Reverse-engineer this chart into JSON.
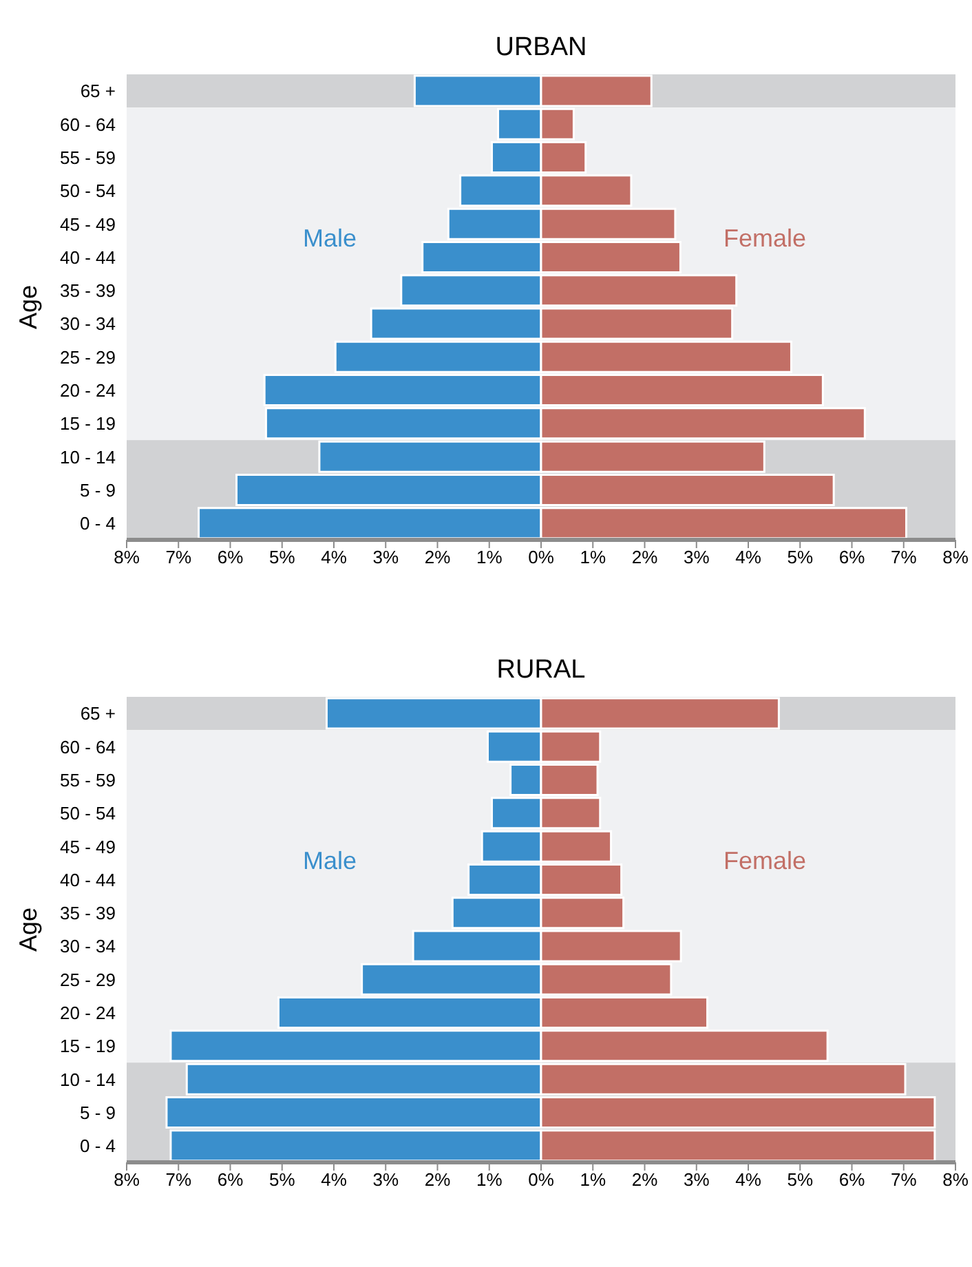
{
  "chart_data": [
    {
      "type": "bar",
      "title": "URBAN",
      "ylabel": "Age",
      "orientation": "horizontal",
      "stacked": true,
      "categories": [
        "65 +",
        "60 - 64",
        "55 - 59",
        "50 - 54",
        "45 - 49",
        "40 - 44",
        "35 - 39",
        "30 - 34",
        "25 - 29",
        "20 - 24",
        "15 - 19",
        "10 - 14",
        "5 - 9",
        "0 - 4"
      ],
      "series": [
        {
          "name": "Male",
          "color": "#3a8fcc",
          "values": [
            -2.44,
            -0.83,
            -0.95,
            -1.56,
            -1.79,
            -2.29,
            -2.7,
            -3.28,
            -3.97,
            -5.34,
            -5.31,
            -4.28,
            -5.88,
            -6.61
          ]
        },
        {
          "name": "Female",
          "color": "#c26f66",
          "values": [
            2.13,
            0.63,
            0.86,
            1.74,
            2.59,
            2.69,
            3.77,
            3.69,
            4.83,
            5.44,
            6.25,
            4.31,
            5.65,
            7.05
          ]
        }
      ],
      "xlim": [
        -8,
        8
      ],
      "xticks": [
        {
          "value": -8,
          "label": "8%"
        },
        {
          "value": -7,
          "label": "7%"
        },
        {
          "value": -6,
          "label": "6%"
        },
        {
          "value": -5,
          "label": "5%"
        },
        {
          "value": -4,
          "label": "4%"
        },
        {
          "value": -3,
          "label": "3%"
        },
        {
          "value": -2,
          "label": "2%"
        },
        {
          "value": -1,
          "label": "1%"
        },
        {
          "value": 0,
          "label": "0%"
        },
        {
          "value": 1,
          "label": "1%"
        },
        {
          "value": 2,
          "label": "2%"
        },
        {
          "value": 3,
          "label": "3%"
        },
        {
          "value": 4,
          "label": "4%"
        },
        {
          "value": 5,
          "label": "5%"
        },
        {
          "value": 6,
          "label": "6%"
        },
        {
          "value": 7,
          "label": "7%"
        },
        {
          "value": 8,
          "label": "8%"
        }
      ],
      "bands": [
        {
          "axis": "y",
          "from": "65 +",
          "to": "65 +",
          "color": "#d1d2d4"
        },
        {
          "axis": "y",
          "from": "60 - 64",
          "to": "15 - 19",
          "color": "#f0f1f3"
        },
        {
          "axis": "y",
          "from": "10 - 14",
          "to": "0 - 4",
          "color": "#d1d2d4"
        }
      ]
    },
    {
      "type": "bar",
      "title": "RURAL",
      "ylabel": "Age",
      "orientation": "horizontal",
      "stacked": true,
      "categories": [
        "65 +",
        "60 - 64",
        "55 - 59",
        "50 - 54",
        "45 - 49",
        "40 - 44",
        "35 - 39",
        "30 - 34",
        "25 - 29",
        "20 - 24",
        "15 - 19",
        "10 - 14",
        "5 - 9",
        "0 - 4"
      ],
      "series": [
        {
          "name": "Male",
          "color": "#3a8fcc",
          "values": [
            -4.14,
            -1.03,
            -0.59,
            -0.95,
            -1.14,
            -1.4,
            -1.71,
            -2.47,
            -3.46,
            -5.07,
            -7.15,
            -6.84,
            -7.23,
            -7.15
          ]
        },
        {
          "name": "Female",
          "color": "#c26f66",
          "values": [
            4.59,
            1.14,
            1.09,
            1.14,
            1.35,
            1.55,
            1.59,
            2.7,
            2.51,
            3.21,
            5.53,
            7.03,
            7.6,
            7.6
          ]
        }
      ],
      "xlim": [
        -8,
        8
      ],
      "xticks": [
        {
          "value": -8,
          "label": "8%"
        },
        {
          "value": -7,
          "label": "7%"
        },
        {
          "value": -6,
          "label": "6%"
        },
        {
          "value": -5,
          "label": "5%"
        },
        {
          "value": -4,
          "label": "4%"
        },
        {
          "value": -3,
          "label": "3%"
        },
        {
          "value": -2,
          "label": "2%"
        },
        {
          "value": -1,
          "label": "1%"
        },
        {
          "value": 0,
          "label": "0%"
        },
        {
          "value": 1,
          "label": "1%"
        },
        {
          "value": 2,
          "label": "2%"
        },
        {
          "value": 3,
          "label": "3%"
        },
        {
          "value": 4,
          "label": "4%"
        },
        {
          "value": 5,
          "label": "5%"
        },
        {
          "value": 6,
          "label": "6%"
        },
        {
          "value": 7,
          "label": "7%"
        },
        {
          "value": 8,
          "label": "8%"
        }
      ],
      "bands": [
        {
          "axis": "y",
          "from": "65 +",
          "to": "65 +",
          "color": "#d1d2d4"
        },
        {
          "axis": "y",
          "from": "60 - 64",
          "to": "15 - 19",
          "color": "#f0f1f3"
        },
        {
          "axis": "y",
          "from": "10 - 14",
          "to": "0 - 4",
          "color": "#d1d2d4"
        }
      ]
    }
  ]
}
